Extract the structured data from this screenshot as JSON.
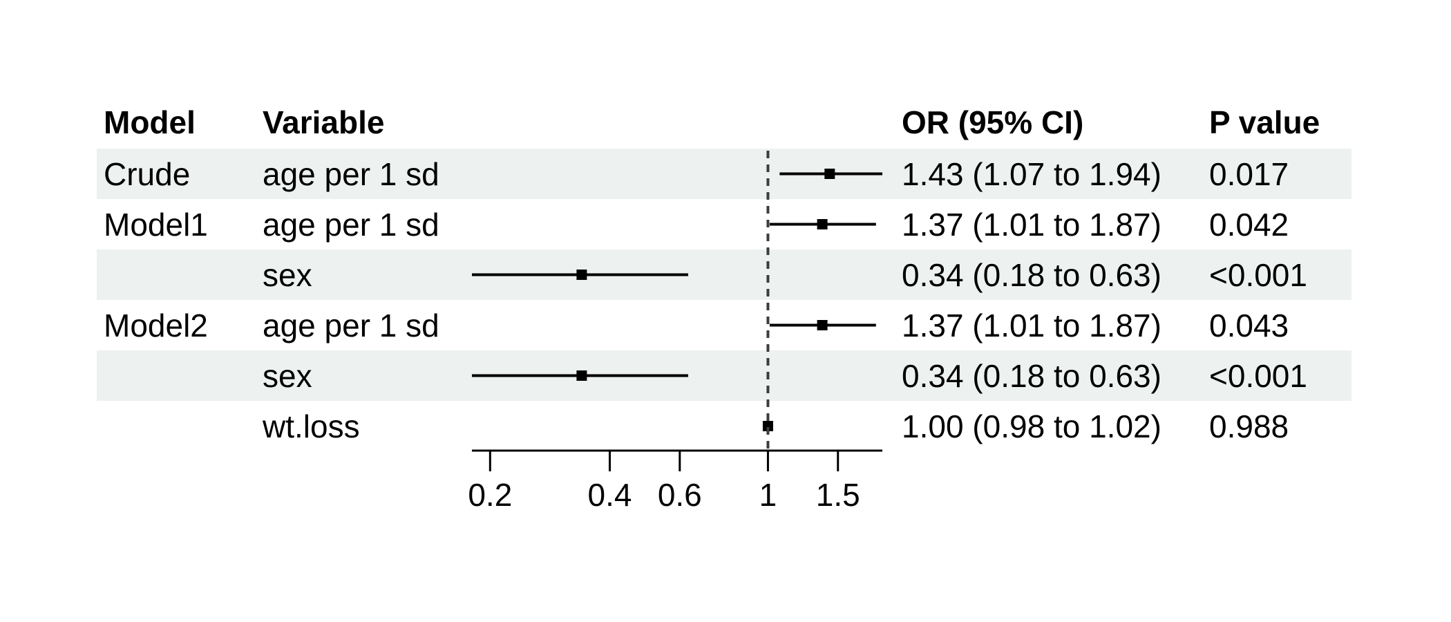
{
  "chart_data": {
    "type": "forest",
    "columns": {
      "model": "Model",
      "variable": "Variable",
      "or_ci": "OR (95% CI)",
      "p": "P value"
    },
    "rows": [
      {
        "model": "Crude",
        "variable": "age per 1 sd",
        "or": 1.43,
        "lo": 1.07,
        "hi": 1.94,
        "or_ci_label": "1.43 (1.07 to 1.94)",
        "p": "0.017",
        "shaded": true
      },
      {
        "model": "Model1",
        "variable": "age per 1 sd",
        "or": 1.37,
        "lo": 1.01,
        "hi": 1.87,
        "or_ci_label": "1.37 (1.01 to 1.87)",
        "p": "0.042",
        "shaded": false
      },
      {
        "model": "",
        "variable": "sex",
        "or": 0.34,
        "lo": 0.18,
        "hi": 0.63,
        "or_ci_label": "0.34 (0.18 to 0.63)",
        "p": "<0.001",
        "shaded": true
      },
      {
        "model": "Model2",
        "variable": "age per 1 sd",
        "or": 1.37,
        "lo": 1.01,
        "hi": 1.87,
        "or_ci_label": "1.37 (1.01 to 1.87)",
        "p": "0.043",
        "shaded": false
      },
      {
        "model": "",
        "variable": "sex",
        "or": 0.34,
        "lo": 0.18,
        "hi": 0.63,
        "or_ci_label": "0.34 (0.18 to 0.63)",
        "p": "<0.001",
        "shaded": true
      },
      {
        "model": "",
        "variable": "wt.loss",
        "or": 1.0,
        "lo": 0.98,
        "hi": 1.02,
        "or_ci_label": "1.00 (0.98 to 1.02)",
        "p": "0.988",
        "shaded": false
      }
    ],
    "x_axis": {
      "scale": "log",
      "range": [
        0.18,
        1.94
      ],
      "ticks": [
        0.2,
        0.4,
        0.6,
        1,
        1.5
      ],
      "tick_labels": [
        "0.2",
        "0.4",
        "0.6",
        "1",
        "1.5"
      ],
      "reference_line": 1
    },
    "marker": "square",
    "legend": "none",
    "grid": "off",
    "colors": {
      "row_shading": "#edf1f0",
      "ci_line": "#000000",
      "marker": "#000000",
      "reference_line": "#3d3d3d",
      "axis": "#000000",
      "text": "#000000",
      "background": "#ffffff"
    }
  }
}
